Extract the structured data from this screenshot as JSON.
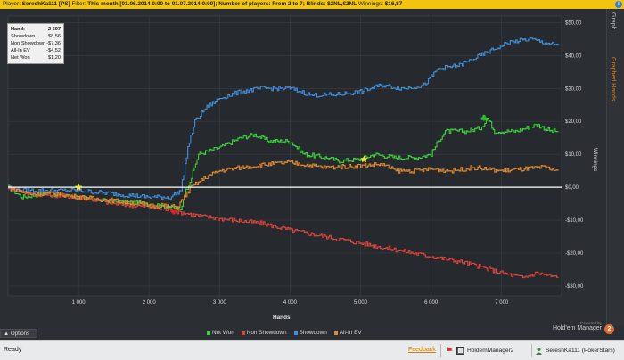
{
  "topbar": {
    "player_label": "Player:",
    "player": "SereshKa111 [PS]",
    "filter_label": "Filter:",
    "filter": "This month [01.06.2014 0:00 to 01.07.2014 0:00]; Number of players: From 2 to 7; Blinds: $2NL,€2NL",
    "winnings_label": "Winnings:",
    "winnings": "$16,87",
    "info_icon": "i"
  },
  "sidebar": {
    "tabs": [
      {
        "label": "Graph",
        "active": true
      },
      {
        "label": "Graphed Hands",
        "active": false
      }
    ]
  },
  "stats": {
    "rows": [
      {
        "label": "Hand:",
        "value": "2 507"
      },
      {
        "label": "Showdown",
        "value": "$8,56"
      },
      {
        "label": "Non Showdown",
        "value": "-$7,36"
      },
      {
        "label": "All-In EV",
        "value": "-$4,52"
      },
      {
        "label": "Net Won",
        "value": "$1,20"
      }
    ]
  },
  "chart_data": {
    "type": "line",
    "xlabel": "Hands",
    "ylabel": "Winnings",
    "xlim": [
      0,
      7850
    ],
    "ylim": [
      -33,
      52
    ],
    "xticks": [
      1000,
      2000,
      3000,
      4000,
      5000,
      6000,
      7000
    ],
    "xtick_labels": [
      "1 000",
      "2 000",
      "3 000",
      "4 000",
      "5 000",
      "6 000",
      "7 000"
    ],
    "yticks": [
      50,
      40,
      30,
      20,
      10,
      0,
      -10,
      -20,
      -30
    ],
    "ytick_labels": [
      "$50,00",
      "$40,00",
      "$30,00",
      "$20,00",
      "$10,00",
      "$0,00",
      "-$10,00",
      "-$20,00",
      "-$30,00"
    ],
    "legend_position": "bottom",
    "series": [
      {
        "name": "Net Won",
        "color": "#3ad23a",
        "points": [
          [
            0,
            0
          ],
          [
            200,
            -3
          ],
          [
            500,
            -2
          ],
          [
            800,
            -2.5
          ],
          [
            1000,
            -3
          ],
          [
            1300,
            -4
          ],
          [
            1600,
            -4.5
          ],
          [
            2000,
            -5
          ],
          [
            2300,
            -6
          ],
          [
            2450,
            -7
          ],
          [
            2500,
            -2
          ],
          [
            2600,
            3
          ],
          [
            2700,
            10
          ],
          [
            3000,
            12
          ],
          [
            3300,
            15
          ],
          [
            3500,
            16
          ],
          [
            3700,
            14
          ],
          [
            4000,
            14
          ],
          [
            4200,
            10
          ],
          [
            4500,
            9
          ],
          [
            4700,
            8
          ],
          [
            5000,
            8.5
          ],
          [
            5200,
            10
          ],
          [
            5500,
            9
          ],
          [
            5800,
            9
          ],
          [
            6000,
            10
          ],
          [
            6100,
            14
          ],
          [
            6200,
            17
          ],
          [
            6500,
            17
          ],
          [
            6700,
            18
          ],
          [
            6800,
            21
          ],
          [
            6900,
            17
          ],
          [
            7200,
            17
          ],
          [
            7500,
            19
          ],
          [
            7700,
            17
          ],
          [
            7800,
            17
          ]
        ]
      },
      {
        "name": "Non Showdown",
        "color": "#e0443a",
        "points": [
          [
            0,
            0
          ],
          [
            300,
            -2
          ],
          [
            700,
            -2.5
          ],
          [
            1000,
            -3
          ],
          [
            1500,
            -5
          ],
          [
            2000,
            -6
          ],
          [
            2400,
            -7.4
          ],
          [
            2800,
            -9
          ],
          [
            3200,
            -10
          ],
          [
            3600,
            -11
          ],
          [
            4000,
            -13
          ],
          [
            4500,
            -15
          ],
          [
            5000,
            -17
          ],
          [
            5500,
            -19
          ],
          [
            6000,
            -21
          ],
          [
            6500,
            -23
          ],
          [
            7000,
            -26
          ],
          [
            7300,
            -27.5
          ],
          [
            7500,
            -26
          ],
          [
            7800,
            -27.5
          ]
        ]
      },
      {
        "name": "Showdown",
        "color": "#3f8fd9",
        "points": [
          [
            0,
            0
          ],
          [
            200,
            -1
          ],
          [
            500,
            -1
          ],
          [
            1000,
            -1
          ],
          [
            1500,
            -2
          ],
          [
            2000,
            -3
          ],
          [
            2300,
            -3
          ],
          [
            2450,
            -1
          ],
          [
            2550,
            12
          ],
          [
            2650,
            20
          ],
          [
            2800,
            24
          ],
          [
            3000,
            27
          ],
          [
            3300,
            29
          ],
          [
            3600,
            30
          ],
          [
            4000,
            30
          ],
          [
            4300,
            28
          ],
          [
            4600,
            28
          ],
          [
            5000,
            29
          ],
          [
            5300,
            31
          ],
          [
            5600,
            30
          ],
          [
            5900,
            31
          ],
          [
            6100,
            36
          ],
          [
            6400,
            37
          ],
          [
            6700,
            40
          ],
          [
            6900,
            42
          ],
          [
            7100,
            44
          ],
          [
            7400,
            45
          ],
          [
            7600,
            44
          ],
          [
            7800,
            43
          ]
        ]
      },
      {
        "name": "All-In EV",
        "color": "#e08a2f",
        "points": [
          [
            0,
            0
          ],
          [
            300,
            -2
          ],
          [
            700,
            -2
          ],
          [
            1000,
            -3
          ],
          [
            1500,
            -4
          ],
          [
            2000,
            -5.5
          ],
          [
            2400,
            -6
          ],
          [
            2500,
            -3
          ],
          [
            2600,
            0
          ],
          [
            2800,
            3
          ],
          [
            3000,
            5
          ],
          [
            3300,
            6
          ],
          [
            3700,
            7
          ],
          [
            4000,
            7.5
          ],
          [
            4500,
            6
          ],
          [
            5000,
            6.5
          ],
          [
            5300,
            7
          ],
          [
            5500,
            5
          ],
          [
            5800,
            5
          ],
          [
            6000,
            5.5
          ],
          [
            6300,
            5
          ],
          [
            6600,
            6
          ],
          [
            7000,
            5
          ],
          [
            7300,
            5.5
          ],
          [
            7600,
            6
          ],
          [
            7800,
            5
          ]
        ]
      }
    ],
    "markers": [
      {
        "kind": "star",
        "color": "#f5e63a",
        "x": 1000,
        "y": 0
      },
      {
        "kind": "star",
        "color": "#f5e63a",
        "x": 5050,
        "y": 8.5
      },
      {
        "kind": "heart",
        "color": "#e02020",
        "x": 2350,
        "y": -7.5
      },
      {
        "kind": "club",
        "color": "#2cbf2c",
        "x": 6750,
        "y": 21
      }
    ]
  },
  "legend": {
    "items": [
      {
        "label": "Net Won",
        "color": "#3ad23a"
      },
      {
        "label": "Non Showdown",
        "color": "#e0443a"
      },
      {
        "label": "Showdown",
        "color": "#3f8fd9"
      },
      {
        "label": "All-In EV",
        "color": "#e08a2f"
      }
    ]
  },
  "branding": {
    "powered_by": "Powered by",
    "name": "Hold'em Manager",
    "badge": "2"
  },
  "options": {
    "label": "Options",
    "icon": "chevron-up-icon"
  },
  "statusbar": {
    "ready": "Ready",
    "feedback": "Feedback",
    "app": "HoldemManager2",
    "profile": "SereshKa111 (PokerStars)"
  }
}
